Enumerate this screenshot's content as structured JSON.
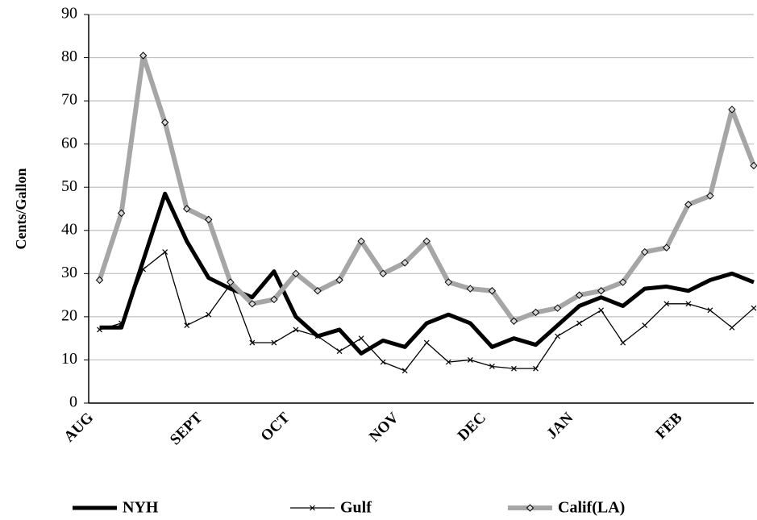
{
  "chart_data": {
    "type": "line",
    "ylabel": "Cents/Gallon",
    "categories": [
      "AUG",
      null,
      null,
      null,
      null,
      "SEPT",
      null,
      null,
      null,
      "OCT",
      null,
      null,
      null,
      null,
      "NOV",
      null,
      null,
      null,
      "DEC",
      null,
      null,
      null,
      "JAN",
      null,
      null,
      null,
      null,
      "FEB",
      null,
      null,
      null
    ],
    "series": [
      {
        "name": "NYH",
        "color": "#000000",
        "width": 5,
        "values": [
          17.5,
          17.5,
          33,
          48.5,
          37.5,
          29,
          26.5,
          24.5,
          30.5,
          20,
          15.5,
          17,
          11.5,
          14.5,
          13,
          18.5,
          20.5,
          18.5,
          13,
          15,
          13.5,
          18,
          22.5,
          24.5,
          22.5,
          26.5,
          27,
          26,
          28.5,
          30,
          28
        ]
      },
      {
        "name": "Gulf",
        "color": "#000000",
        "width": 1.3,
        "marker": "x",
        "values": [
          17,
          18.5,
          31,
          35,
          18,
          20.5,
          27.5,
          14,
          14,
          17,
          15.5,
          12,
          15,
          9.5,
          7.5,
          14,
          9.5,
          10,
          8.5,
          8,
          8,
          15.5,
          18.5,
          21.5,
          14,
          18,
          23,
          23,
          21.5,
          17.5,
          22
        ]
      },
      {
        "name": "Calif(LA)",
        "color": "#a6a6a6",
        "width": 6,
        "marker": "diamond",
        "values": [
          28.5,
          44,
          80.5,
          65,
          45,
          42.5,
          28,
          23,
          24,
          30,
          26,
          28.5,
          37.5,
          30,
          32.5,
          37.5,
          28,
          26.5,
          26,
          19,
          21,
          22,
          25,
          26,
          28,
          35,
          36,
          46,
          48,
          68,
          55
        ]
      }
    ],
    "ylim": [
      0,
      90
    ],
    "yticks": [
      0,
      10,
      20,
      30,
      40,
      50,
      60,
      70,
      80,
      90
    ],
    "grid": true,
    "legend": "bottom"
  }
}
